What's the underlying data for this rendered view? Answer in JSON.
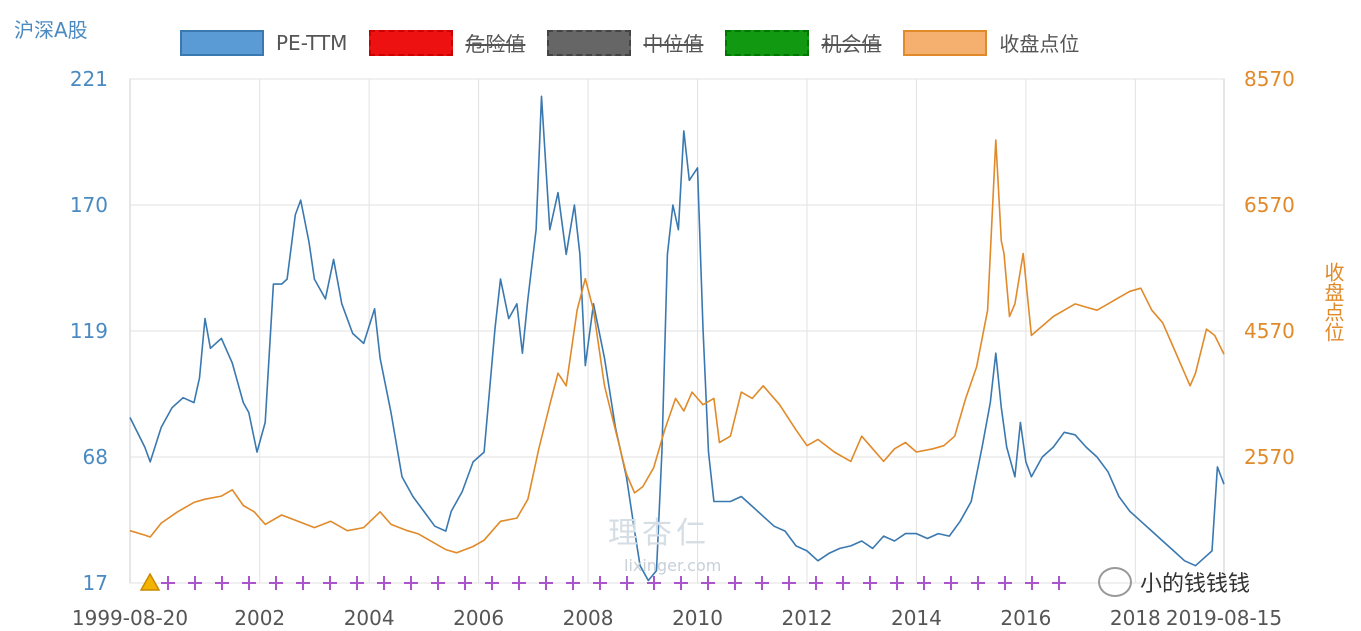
{
  "chart_data": {
    "type": "line",
    "left_axis_title": "沪深A股",
    "right_axis_title": "收盘点位",
    "legend": [
      {
        "label": "PE-TTM",
        "color": "#5b9bd5",
        "stroke": "#3a78b0",
        "active": true
      },
      {
        "label": "危险值",
        "color": "#ee1111",
        "stroke": "#cc0000",
        "active": false
      },
      {
        "label": "中位值",
        "color": "#666666",
        "stroke": "#444444",
        "active": false
      },
      {
        "label": "机会值",
        "color": "#119911",
        "stroke": "#007700",
        "active": false
      },
      {
        "label": "收盘点位",
        "color": "#f5b070",
        "stroke": "#e08a2a",
        "active": true
      }
    ],
    "left_axis": {
      "ticks": [
        "221",
        "170",
        "119",
        "68",
        "17"
      ],
      "ylim": [
        17,
        221
      ],
      "color": "#4a8ac0"
    },
    "right_axis": {
      "ticks": [
        "8570",
        "6570",
        "4570",
        "2570"
      ],
      "ylim": [
        570,
        8570
      ],
      "color": "#e08a2a"
    },
    "x_ticks": [
      {
        "label": "1999-08-20",
        "year": 1999.63
      },
      {
        "label": "2002",
        "year": 2002.0
      },
      {
        "label": "2004",
        "year": 2004.0
      },
      {
        "label": "2006",
        "year": 2006.0
      },
      {
        "label": "2008",
        "year": 2008.0
      },
      {
        "label": "2010",
        "year": 2010.0
      },
      {
        "label": "2012",
        "year": 2012.0
      },
      {
        "label": "2014",
        "year": 2014.0
      },
      {
        "label": "2016",
        "year": 2016.0
      },
      {
        "label": "2018",
        "year": 2018.0
      },
      {
        "label": "2019-08-15",
        "year": 2019.62
      }
    ],
    "xlim": [
      1999.63,
      2019.62
    ],
    "grid": true,
    "series": [
      {
        "name": "PE-TTM",
        "axis": "left",
        "color": "#3a78b0",
        "points": [
          [
            1999.63,
            84
          ],
          [
            1999.9,
            72
          ],
          [
            2000.0,
            66
          ],
          [
            2000.2,
            80
          ],
          [
            2000.4,
            88
          ],
          [
            2000.6,
            92
          ],
          [
            2000.8,
            90
          ],
          [
            2000.9,
            100
          ],
          [
            2001.0,
            124
          ],
          [
            2001.1,
            112
          ],
          [
            2001.3,
            116
          ],
          [
            2001.5,
            106
          ],
          [
            2001.7,
            90
          ],
          [
            2001.8,
            86
          ],
          [
            2001.95,
            70
          ],
          [
            2002.1,
            82
          ],
          [
            2002.25,
            138
          ],
          [
            2002.4,
            138
          ],
          [
            2002.5,
            140
          ],
          [
            2002.65,
            166
          ],
          [
            2002.75,
            172
          ],
          [
            2002.9,
            155
          ],
          [
            2003.0,
            140
          ],
          [
            2003.2,
            132
          ],
          [
            2003.35,
            148
          ],
          [
            2003.5,
            130
          ],
          [
            2003.7,
            118
          ],
          [
            2003.9,
            114
          ],
          [
            2004.1,
            128
          ],
          [
            2004.2,
            108
          ],
          [
            2004.4,
            86
          ],
          [
            2004.6,
            60
          ],
          [
            2004.8,
            52
          ],
          [
            2005.0,
            46
          ],
          [
            2005.2,
            40
          ],
          [
            2005.4,
            38
          ],
          [
            2005.5,
            46
          ],
          [
            2005.7,
            54
          ],
          [
            2005.9,
            66
          ],
          [
            2006.1,
            70
          ],
          [
            2006.3,
            120
          ],
          [
            2006.4,
            140
          ],
          [
            2006.55,
            124
          ],
          [
            2006.7,
            130
          ],
          [
            2006.8,
            110
          ],
          [
            2006.9,
            132
          ],
          [
            2007.05,
            160
          ],
          [
            2007.15,
            214
          ],
          [
            2007.3,
            160
          ],
          [
            2007.45,
            175
          ],
          [
            2007.6,
            150
          ],
          [
            2007.75,
            170
          ],
          [
            2007.85,
            150
          ],
          [
            2007.95,
            105
          ],
          [
            2008.1,
            130
          ],
          [
            2008.3,
            108
          ],
          [
            2008.5,
            80
          ],
          [
            2008.7,
            60
          ],
          [
            2008.85,
            38
          ],
          [
            2008.95,
            24
          ],
          [
            2009.1,
            18
          ],
          [
            2009.25,
            22
          ],
          [
            2009.35,
            70
          ],
          [
            2009.45,
            150
          ],
          [
            2009.55,
            170
          ],
          [
            2009.65,
            160
          ],
          [
            2009.75,
            200
          ],
          [
            2009.85,
            180
          ],
          [
            2010.0,
            185
          ],
          [
            2010.1,
            120
          ],
          [
            2010.2,
            70
          ],
          [
            2010.3,
            50
          ],
          [
            2010.6,
            50
          ],
          [
            2010.8,
            52
          ],
          [
            2011.0,
            48
          ],
          [
            2011.2,
            44
          ],
          [
            2011.4,
            40
          ],
          [
            2011.6,
            38
          ],
          [
            2011.8,
            32
          ],
          [
            2012.0,
            30
          ],
          [
            2012.2,
            26
          ],
          [
            2012.4,
            29
          ],
          [
            2012.6,
            31
          ],
          [
            2012.8,
            32
          ],
          [
            2013.0,
            34
          ],
          [
            2013.2,
            31
          ],
          [
            2013.4,
            36
          ],
          [
            2013.6,
            34
          ],
          [
            2013.8,
            37
          ],
          [
            2014.0,
            37
          ],
          [
            2014.2,
            35
          ],
          [
            2014.4,
            37
          ],
          [
            2014.6,
            36
          ],
          [
            2014.8,
            42
          ],
          [
            2015.0,
            50
          ],
          [
            2015.2,
            72
          ],
          [
            2015.35,
            90
          ],
          [
            2015.45,
            110
          ],
          [
            2015.55,
            88
          ],
          [
            2015.65,
            72
          ],
          [
            2015.8,
            60
          ],
          [
            2015.9,
            82
          ],
          [
            2016.0,
            66
          ],
          [
            2016.1,
            60
          ],
          [
            2016.3,
            68
          ],
          [
            2016.5,
            72
          ],
          [
            2016.7,
            78
          ],
          [
            2016.9,
            77
          ],
          [
            2017.1,
            72
          ],
          [
            2017.3,
            68
          ],
          [
            2017.5,
            62
          ],
          [
            2017.7,
            52
          ],
          [
            2017.9,
            46
          ],
          [
            2018.1,
            42
          ],
          [
            2018.3,
            38
          ],
          [
            2018.5,
            34
          ],
          [
            2018.7,
            30
          ],
          [
            2018.9,
            26
          ],
          [
            2019.1,
            24
          ],
          [
            2019.3,
            28
          ],
          [
            2019.4,
            30
          ],
          [
            2019.5,
            64
          ],
          [
            2019.62,
            57
          ]
        ]
      },
      {
        "name": "收盘点位",
        "axis": "right",
        "color": "#e08a2a",
        "points": [
          [
            1999.63,
            1400
          ],
          [
            1999.9,
            1330
          ],
          [
            2000.0,
            1300
          ],
          [
            2000.2,
            1520
          ],
          [
            2000.5,
            1700
          ],
          [
            2000.8,
            1850
          ],
          [
            2001.0,
            1900
          ],
          [
            2001.3,
            1950
          ],
          [
            2001.5,
            2050
          ],
          [
            2001.7,
            1800
          ],
          [
            2001.9,
            1700
          ],
          [
            2002.1,
            1500
          ],
          [
            2002.4,
            1650
          ],
          [
            2002.7,
            1550
          ],
          [
            2003.0,
            1450
          ],
          [
            2003.3,
            1550
          ],
          [
            2003.6,
            1400
          ],
          [
            2003.9,
            1450
          ],
          [
            2004.2,
            1700
          ],
          [
            2004.4,
            1500
          ],
          [
            2004.7,
            1400
          ],
          [
            2004.9,
            1350
          ],
          [
            2005.2,
            1200
          ],
          [
            2005.4,
            1100
          ],
          [
            2005.6,
            1050
          ],
          [
            2005.9,
            1150
          ],
          [
            2006.1,
            1250
          ],
          [
            2006.4,
            1550
          ],
          [
            2006.7,
            1600
          ],
          [
            2006.9,
            1900
          ],
          [
            2007.1,
            2700
          ],
          [
            2007.3,
            3400
          ],
          [
            2007.45,
            3900
          ],
          [
            2007.6,
            3700
          ],
          [
            2007.8,
            4900
          ],
          [
            2007.95,
            5400
          ],
          [
            2008.1,
            4900
          ],
          [
            2008.3,
            3700
          ],
          [
            2008.5,
            3000
          ],
          [
            2008.7,
            2300
          ],
          [
            2008.85,
            2000
          ],
          [
            2009.0,
            2100
          ],
          [
            2009.2,
            2400
          ],
          [
            2009.4,
            3000
          ],
          [
            2009.6,
            3500
          ],
          [
            2009.75,
            3300
          ],
          [
            2009.9,
            3600
          ],
          [
            2010.1,
            3400
          ],
          [
            2010.3,
            3500
          ],
          [
            2010.4,
            2800
          ],
          [
            2010.6,
            2900
          ],
          [
            2010.8,
            3600
          ],
          [
            2011.0,
            3500
          ],
          [
            2011.2,
            3700
          ],
          [
            2011.5,
            3400
          ],
          [
            2011.8,
            3000
          ],
          [
            2012.0,
            2750
          ],
          [
            2012.2,
            2850
          ],
          [
            2012.5,
            2650
          ],
          [
            2012.8,
            2500
          ],
          [
            2013.0,
            2900
          ],
          [
            2013.2,
            2700
          ],
          [
            2013.4,
            2500
          ],
          [
            2013.6,
            2700
          ],
          [
            2013.8,
            2800
          ],
          [
            2014.0,
            2650
          ],
          [
            2014.3,
            2700
          ],
          [
            2014.5,
            2750
          ],
          [
            2014.7,
            2900
          ],
          [
            2014.9,
            3500
          ],
          [
            2015.1,
            4000
          ],
          [
            2015.3,
            4900
          ],
          [
            2015.45,
            7600
          ],
          [
            2015.55,
            6000
          ],
          [
            2015.6,
            5800
          ],
          [
            2015.7,
            4800
          ],
          [
            2015.8,
            5000
          ],
          [
            2015.95,
            5800
          ],
          [
            2016.1,
            4500
          ],
          [
            2016.3,
            4650
          ],
          [
            2016.5,
            4800
          ],
          [
            2016.7,
            4900
          ],
          [
            2016.9,
            5000
          ],
          [
            2017.1,
            4950
          ],
          [
            2017.3,
            4900
          ],
          [
            2017.5,
            5000
          ],
          [
            2017.7,
            5100
          ],
          [
            2017.9,
            5200
          ],
          [
            2018.1,
            5250
          ],
          [
            2018.3,
            4900
          ],
          [
            2018.5,
            4700
          ],
          [
            2018.7,
            4300
          ],
          [
            2018.9,
            3900
          ],
          [
            2019.0,
            3700
          ],
          [
            2019.1,
            3900
          ],
          [
            2019.3,
            4600
          ],
          [
            2019.45,
            4500
          ],
          [
            2019.62,
            4200
          ]
        ]
      },
      {
        "name": "机会值",
        "axis": "left",
        "color": "#aa55cc",
        "marker": "+",
        "level": 17
      }
    ]
  },
  "brand": {
    "watermark_text": "理杏仁",
    "watermark_url": "lixinger.com",
    "wechat_name": "小的钱钱钱"
  }
}
